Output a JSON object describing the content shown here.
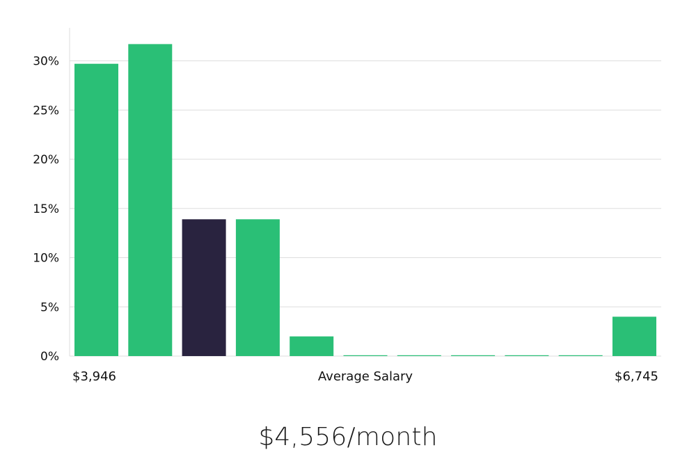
{
  "chart_data": {
    "type": "bar",
    "values": [
      29.7,
      31.7,
      13.9,
      13.9,
      2.0,
      0,
      0,
      0,
      0,
      0,
      4.0
    ],
    "highlight_index": 2,
    "ylim": [
      0,
      33
    ],
    "y_ticks": [
      0,
      5,
      10,
      15,
      20,
      25,
      30
    ],
    "y_tick_suffix": "%",
    "grid": true,
    "x_min_label": "$3,946",
    "x_center_label": "Average Salary",
    "x_max_label": "$6,745",
    "colors": {
      "bar": "#2abf76",
      "highlight": "#29233f",
      "grid": "#dddddd"
    }
  },
  "headline": "$4,556/month"
}
